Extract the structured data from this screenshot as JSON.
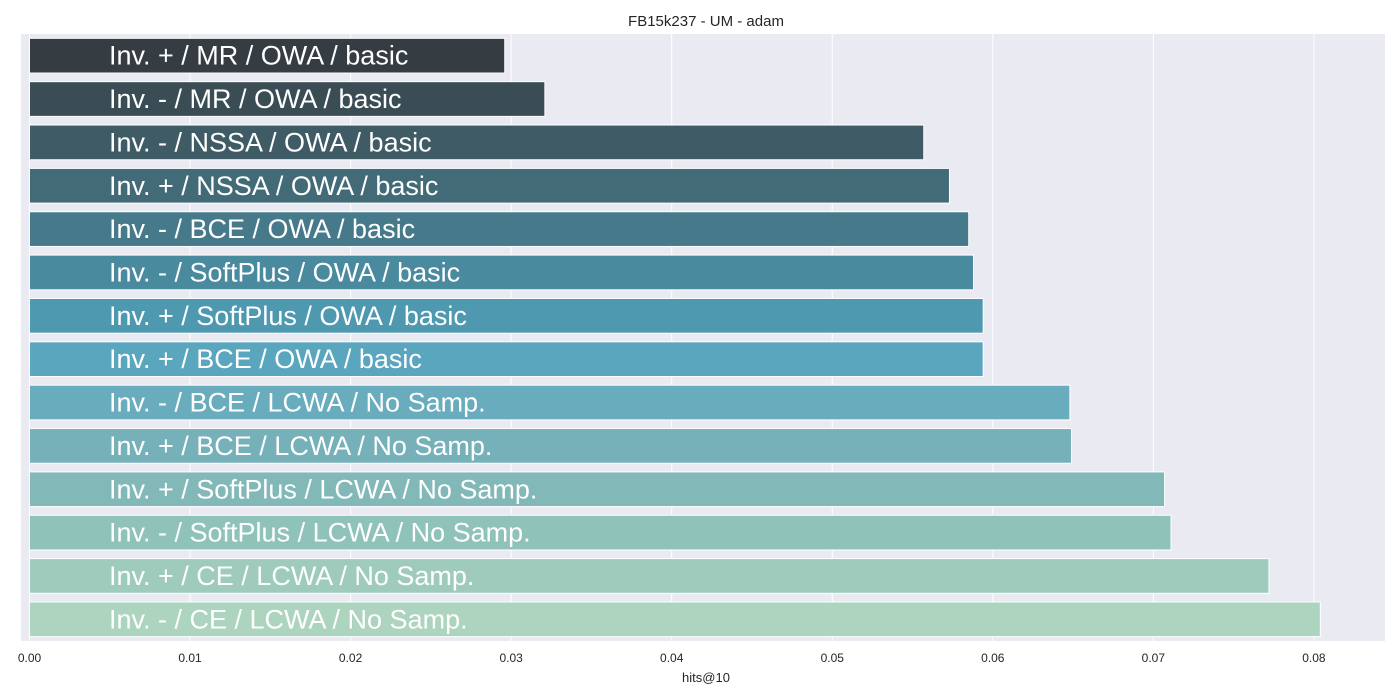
{
  "chart_data": {
    "type": "bar",
    "orientation": "horizontal",
    "title": "FB15k237 - UM - adam",
    "xlabel": "hits@10",
    "ylabel": "",
    "xlim": [
      0,
      0.0845
    ],
    "xticks": [
      0.0,
      0.01,
      0.02,
      0.03,
      0.04,
      0.05,
      0.06,
      0.07,
      0.08
    ],
    "xtick_labels": [
      "0.00",
      "0.01",
      "0.02",
      "0.03",
      "0.04",
      "0.05",
      "0.06",
      "0.07",
      "0.08"
    ],
    "grid": true,
    "background": "#eaeaf2",
    "categories": [
      "Inv. + / MR / OWA / basic",
      "Inv. - / MR / OWA / basic",
      "Inv. - / NSSA / OWA / basic",
      "Inv. + / NSSA / OWA / basic",
      "Inv. - / BCE / OWA / basic",
      "Inv. - / SoftPlus / OWA / basic",
      "Inv. + / SoftPlus / OWA / basic",
      "Inv. + / BCE / OWA / basic",
      "Inv. - / BCE / LCWA / No Samp.",
      "Inv. + / BCE / LCWA / No Samp.",
      "Inv. + / SoftPlus / LCWA / No Samp.",
      "Inv. - / SoftPlus / LCWA / No Samp.",
      "Inv. + / CE / LCWA / No Samp.",
      "Inv. - / CE / LCWA / No Samp."
    ],
    "values": [
      0.0296,
      0.0321,
      0.0557,
      0.0573,
      0.0585,
      0.0588,
      0.0594,
      0.0594,
      0.0648,
      0.0649,
      0.0707,
      0.0711,
      0.0772,
      0.0804
    ],
    "colors": [
      "#353c42",
      "#3a4d55",
      "#3f5c66",
      "#426a77",
      "#467a8a",
      "#498a9f",
      "#4e98b0",
      "#59a6be",
      "#68acbd",
      "#76b0b9",
      "#82b9b8",
      "#8fc3b9",
      "#9ecbbc",
      "#acd4be"
    ]
  }
}
